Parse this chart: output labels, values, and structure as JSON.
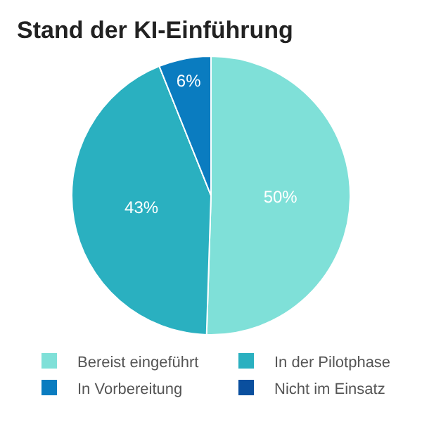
{
  "chart_data": {
    "type": "pie",
    "title": "Stand der KI-Einführung",
    "categories": [
      "Bereist eingeführt",
      "In der Pilotphase",
      "In Vorbereitung",
      "Nicht im Einsatz"
    ],
    "values": [
      50,
      43,
      6,
      0
    ],
    "value_labels": [
      "50%",
      "43%",
      "6%",
      null
    ],
    "colors": [
      "#7fe0d8",
      "#2ab0c0",
      "#0a7cc0",
      "#0a4f9e"
    ],
    "legend": "bottom"
  }
}
